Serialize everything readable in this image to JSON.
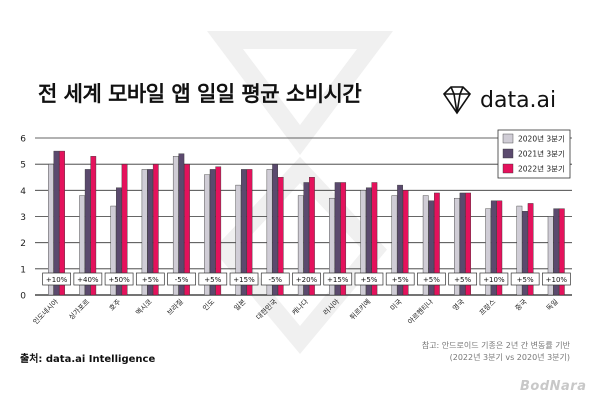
{
  "header": {
    "title": "전 세계 모바일 앱 일일 평균 소비시간",
    "brand": "data.ai"
  },
  "footer": {
    "source": "출처: data.ai Intelligence",
    "note_line1": "참고: 안드로이드 기종은 2년 간 변동률 기반",
    "note_line2": "(2022년 3분기 vs 2020년 3분기)",
    "watermark": "BodNara"
  },
  "colors": {
    "series_2020": "#d0cdd6",
    "series_2021": "#5b4a6e",
    "series_2022": "#e4125c",
    "accent": "#e4125c"
  },
  "chart_data": {
    "type": "bar",
    "title": "전 세계 모바일 앱 일일 평균 소비시간",
    "categories": [
      "인도네시아",
      "싱가포르",
      "호주",
      "멕시코",
      "브라질",
      "인도",
      "일본",
      "대한민국",
      "캐나다",
      "러시아",
      "튀르키예",
      "미국",
      "아르헨티나",
      "영국",
      "프랑스",
      "중국",
      "독일"
    ],
    "series": [
      {
        "name": "2020년 3분기",
        "values": [
          5.0,
          3.8,
          3.4,
          4.8,
          5.3,
          4.6,
          4.2,
          4.8,
          3.8,
          3.7,
          4.0,
          3.8,
          3.8,
          3.7,
          3.3,
          3.4,
          3.0
        ]
      },
      {
        "name": "2021년 3분기",
        "values": [
          5.5,
          4.8,
          4.1,
          4.8,
          5.4,
          4.8,
          4.8,
          5.0,
          4.3,
          4.3,
          4.1,
          4.2,
          3.6,
          3.9,
          3.6,
          3.2,
          3.3
        ]
      },
      {
        "name": "2022년 3분기",
        "values": [
          5.5,
          5.3,
          5.0,
          5.0,
          5.0,
          4.9,
          4.8,
          4.5,
          4.5,
          4.3,
          4.3,
          4.0,
          3.9,
          3.9,
          3.6,
          3.5,
          3.3
        ]
      }
    ],
    "change_labels": [
      "+10%",
      "+40%",
      "+50%",
      "+5%",
      "-5%",
      "+5%",
      "+15%",
      "-5%",
      "+20%",
      "+15%",
      "+5%",
      "+5%",
      "+5%",
      "+5%",
      "+10%",
      "+5%",
      "+10%"
    ],
    "ylim": [
      0,
      6
    ],
    "yticks": [
      0,
      1,
      2,
      3,
      4,
      5,
      6
    ],
    "grid": true,
    "legend_position": "top-right"
  }
}
